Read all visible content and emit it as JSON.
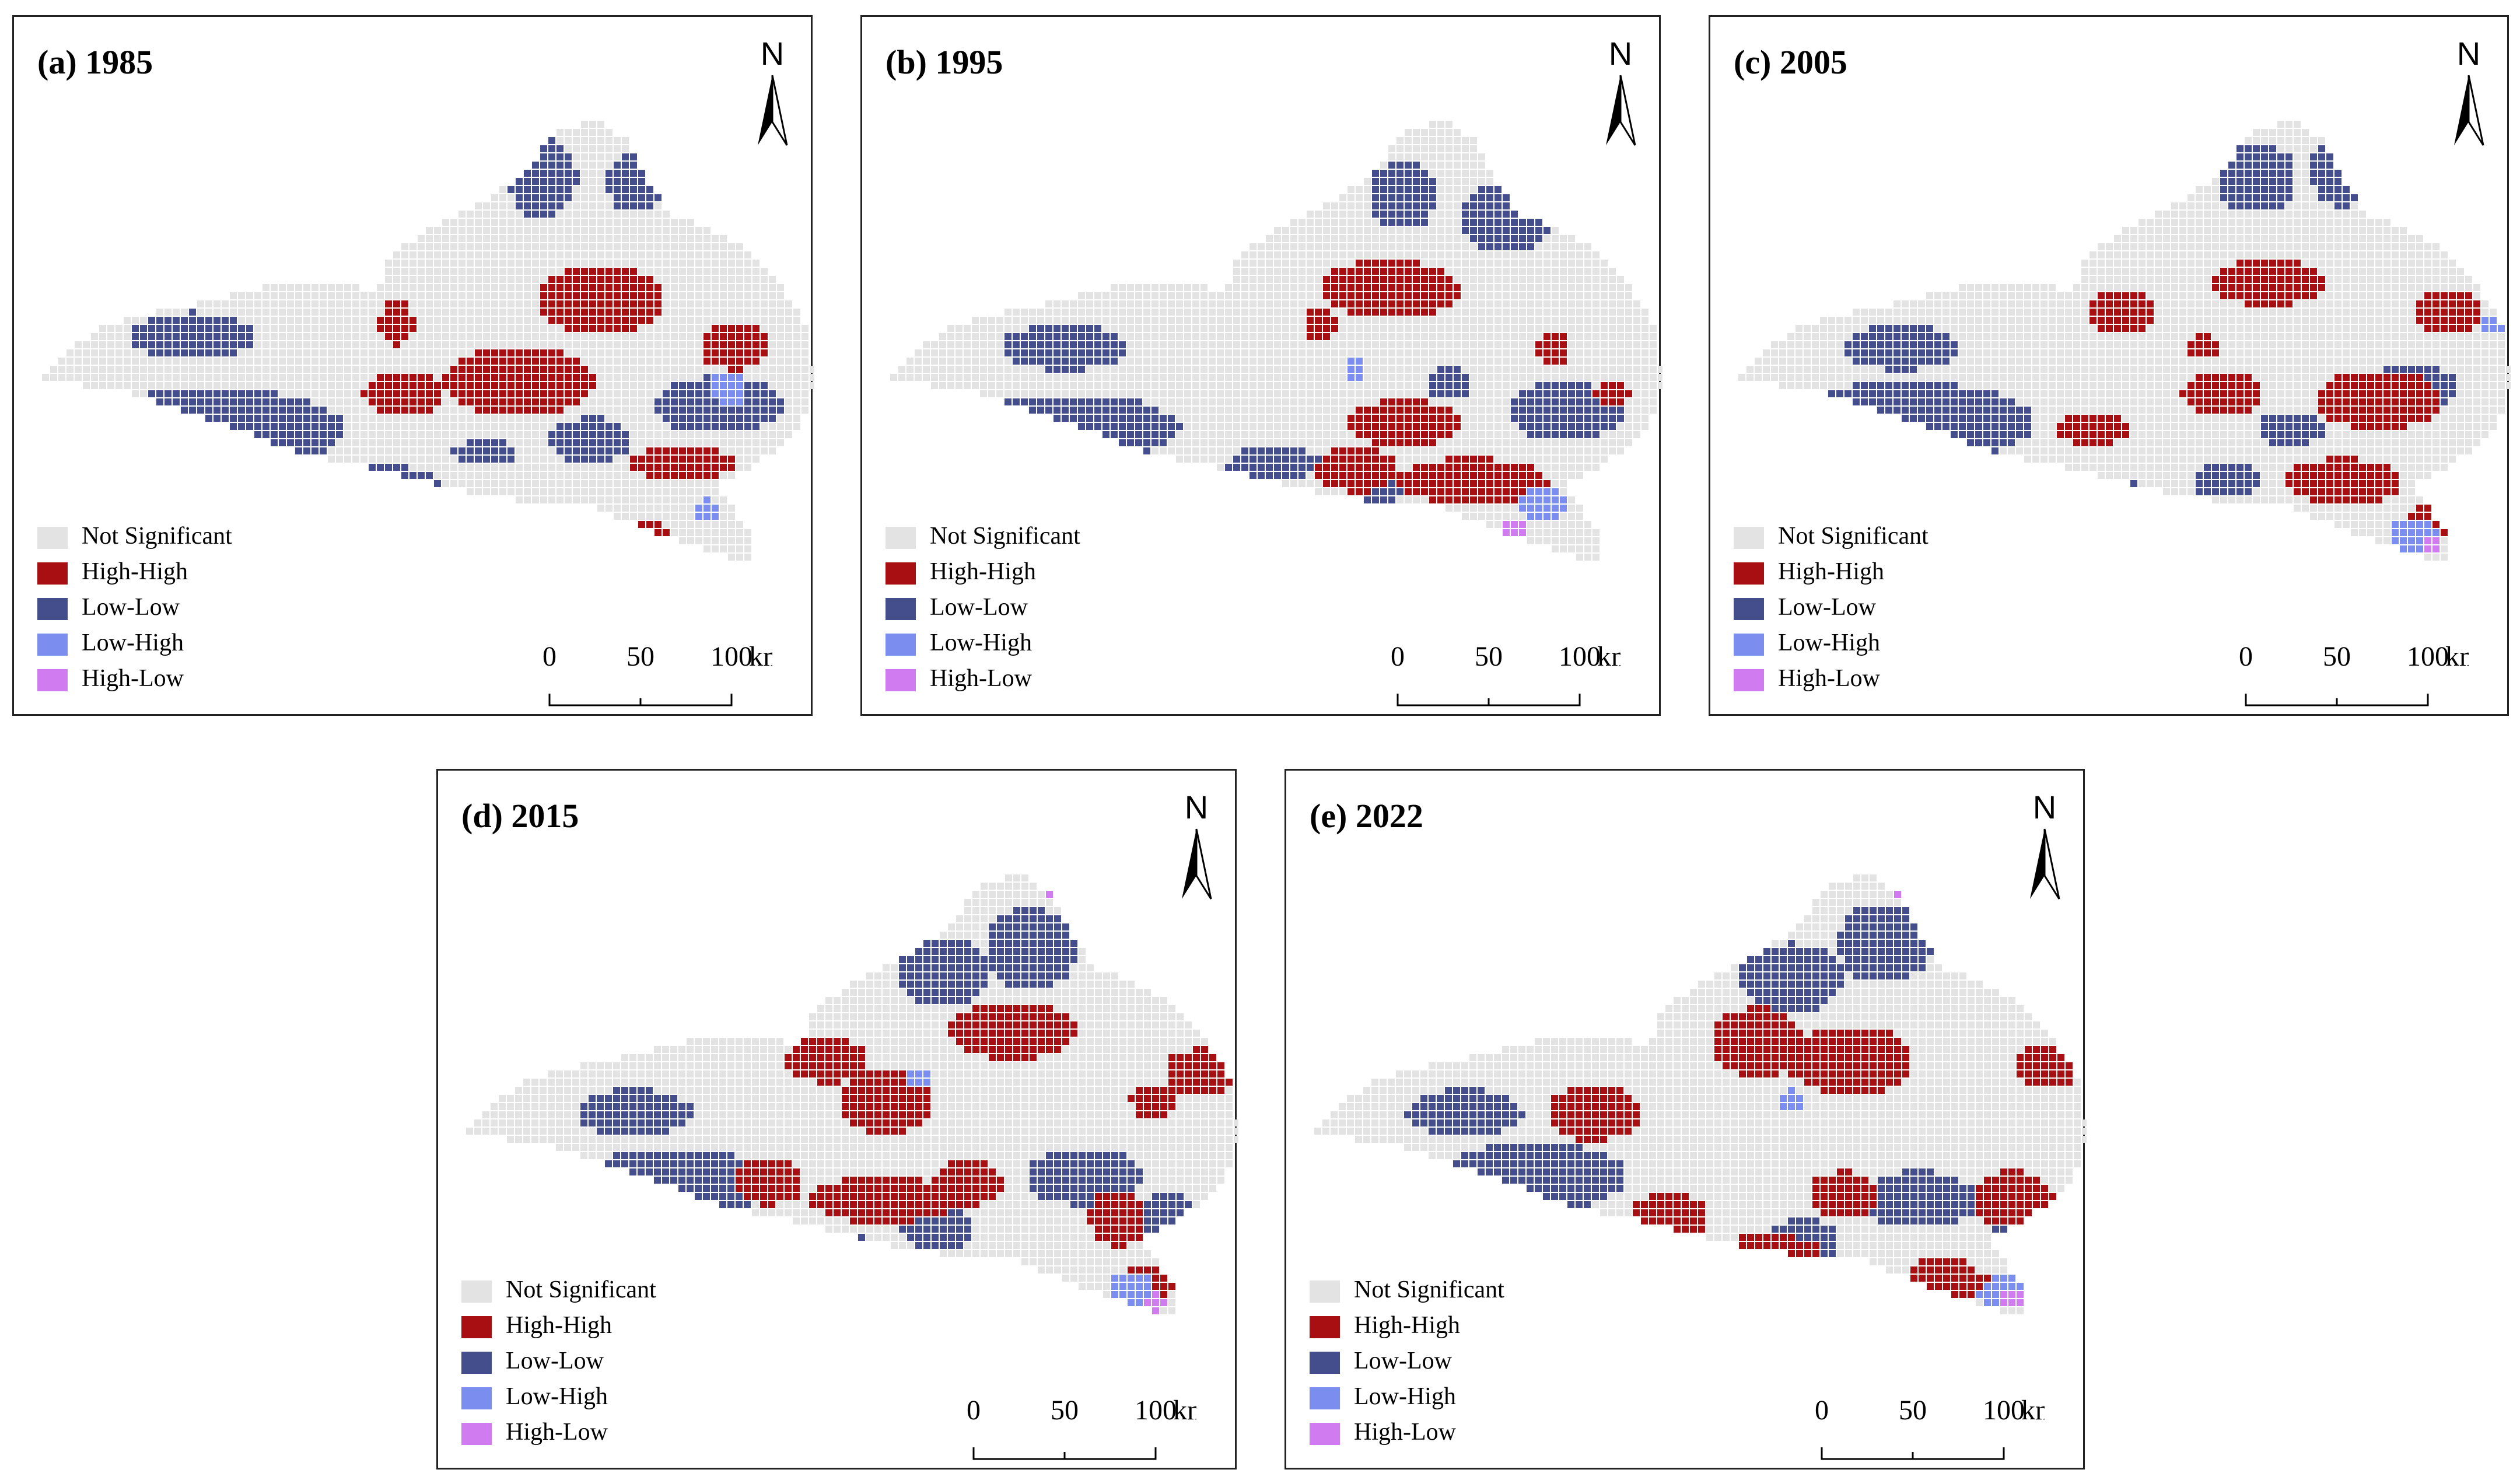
{
  "panels": [
    {
      "id": "a",
      "title": "(a) 1985"
    },
    {
      "id": "b",
      "title": "(b) 1995"
    },
    {
      "id": "c",
      "title": "(c) 2005"
    },
    {
      "id": "d",
      "title": "(d) 2015"
    },
    {
      "id": "e",
      "title": "(e) 2022"
    }
  ],
  "north_label": "N",
  "legend": [
    {
      "label": "Not Significant",
      "color": "#e3e3e3"
    },
    {
      "label": "High-High",
      "color": "#a80f12"
    },
    {
      "label": "Low-Low",
      "color": "#454e8c"
    },
    {
      "label": "Low-High",
      "color": "#7c8df0"
    },
    {
      "label": "High-Low",
      "color": "#d07cf0"
    }
  ],
  "scale": {
    "ticks": [
      "0",
      "50",
      "100"
    ],
    "unit": "km"
  }
}
